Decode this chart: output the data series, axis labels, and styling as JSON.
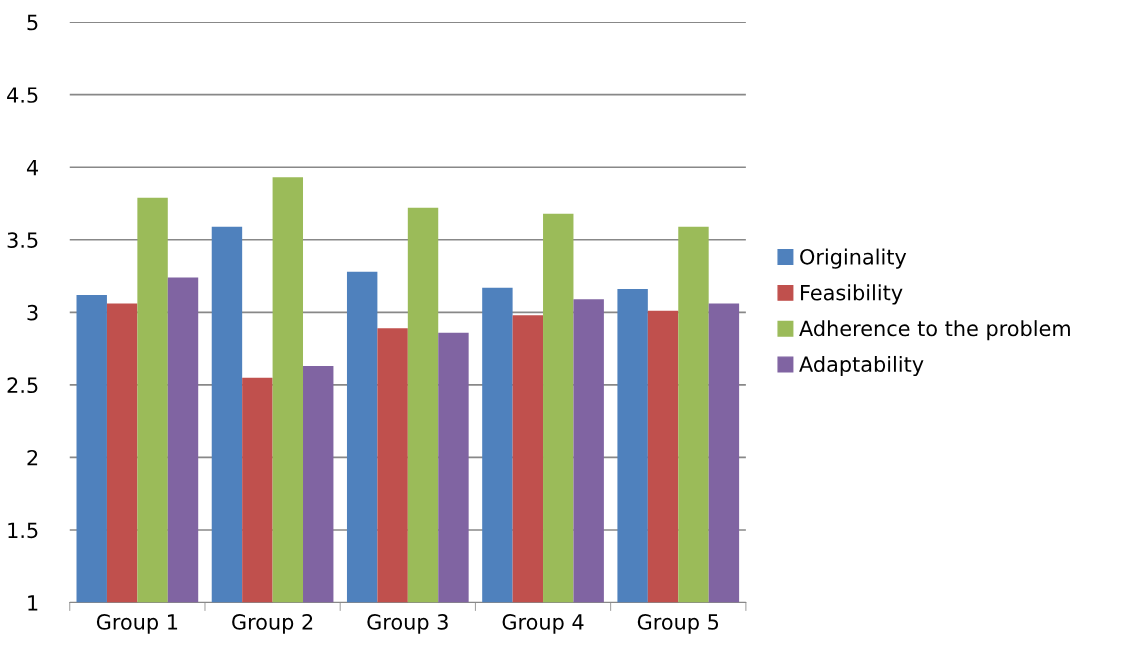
{
  "chart_data": {
    "type": "bar",
    "categories": [
      "Group 1",
      "Group 2",
      "Group 3",
      "Group 4",
      "Group 5"
    ],
    "series": [
      {
        "name": "Originality",
        "color": "#4f81bd",
        "values": [
          3.12,
          3.59,
          3.28,
          3.17,
          3.16
        ]
      },
      {
        "name": "Feasibility",
        "color": "#c0504d",
        "values": [
          3.06,
          2.55,
          2.89,
          2.98,
          3.01
        ]
      },
      {
        "name": "Adherence to the problem",
        "color": "#9bbb59",
        "values": [
          3.79,
          3.93,
          3.72,
          3.68,
          3.59
        ]
      },
      {
        "name": "Adaptability",
        "color": "#8064a2",
        "values": [
          3.24,
          2.63,
          2.86,
          3.09,
          3.06
        ]
      }
    ],
    "ylim": [
      1,
      5
    ],
    "yticks": [
      1,
      1.5,
      2,
      2.5,
      3,
      3.5,
      4,
      4.5,
      5
    ],
    "grid": "y",
    "legend": "right"
  }
}
